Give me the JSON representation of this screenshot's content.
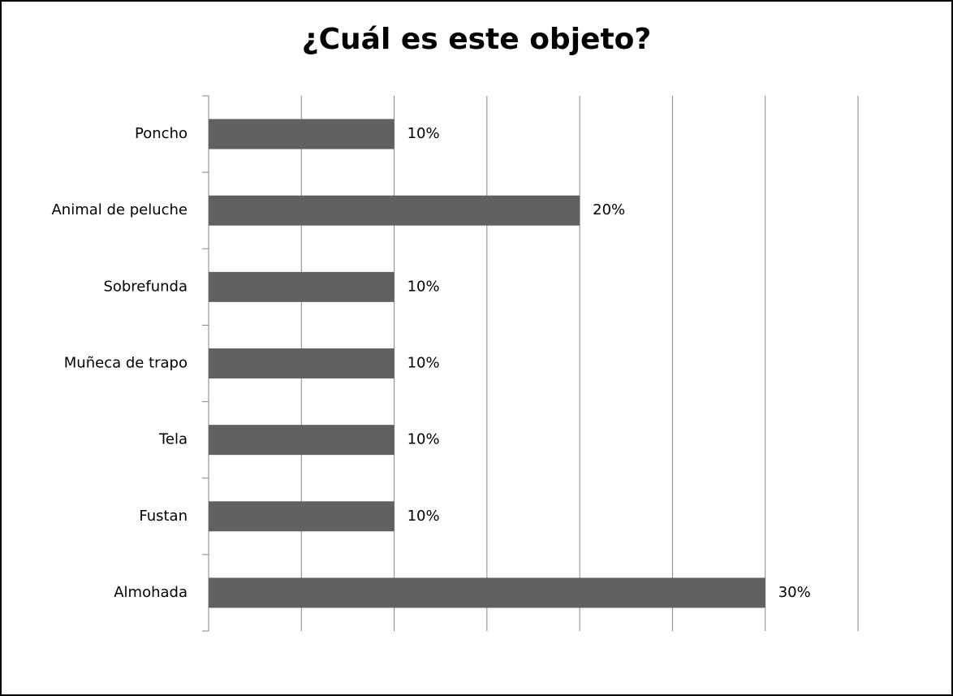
{
  "chart_data": {
    "type": "barh",
    "title": "¿Cuál es este objeto?",
    "categories": [
      "Poncho",
      "Animal de peluche",
      "Sobrefunda",
      "Muñeca de trapo",
      "Tela",
      "Fustan",
      "Almohada"
    ],
    "values": [
      10,
      20,
      10,
      10,
      10,
      10,
      30
    ],
    "value_labels": [
      "10%",
      "20%",
      "10%",
      "10%",
      "10%",
      "10%",
      "30%"
    ],
    "color": "#616161",
    "xlim": [
      0,
      35
    ],
    "xticks": [
      0,
      5,
      10,
      15,
      20,
      25,
      30,
      35
    ],
    "grid": true
  }
}
